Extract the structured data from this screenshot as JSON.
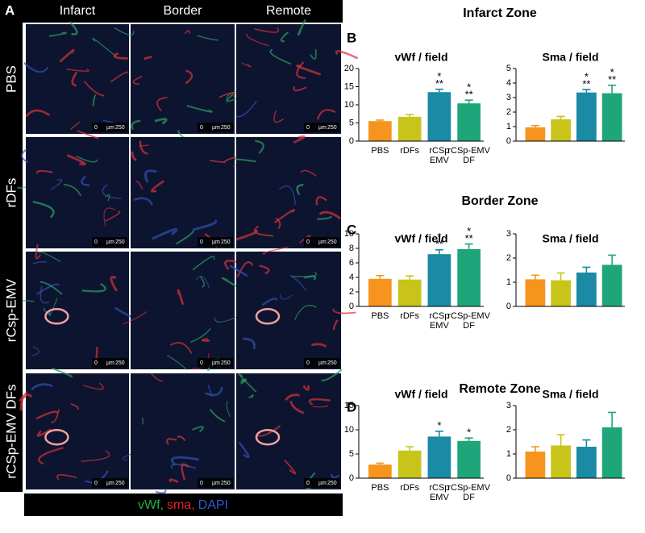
{
  "panel_a": {
    "letter": "A",
    "columns": [
      "Infarct",
      "Border",
      "Remote"
    ],
    "rows": [
      "PBS",
      "rDFs",
      "rCsp-EMV",
      "rCSp-EMV DFs"
    ],
    "scale_bar": {
      "start": "0",
      "unit": "µm",
      "end": "250"
    },
    "legend": [
      {
        "name": "vWf,",
        "color": "#22b04a"
      },
      {
        "name": "sma,",
        "color": "#e8202a"
      },
      {
        "name": "DAPI",
        "color": "#2a5cd8"
      }
    ]
  },
  "zones": [
    {
      "letter": "B",
      "title": "Infarct Zone"
    },
    {
      "letter": "C",
      "title": "Border Zone"
    },
    {
      "letter": "D",
      "title": "Remote Zone"
    }
  ],
  "chart_data": [
    {
      "type": "bar",
      "title": "vWf / field",
      "categories": [
        "PBS",
        "rDFs",
        "rCSp EMV",
        "rCSp-EMV DF"
      ],
      "values": [
        5.5,
        6.7,
        13.5,
        10.4
      ],
      "errors": [
        0.3,
        0.6,
        0.8,
        0.9
      ],
      "annotations": [
        null,
        null,
        [
          "*",
          "**"
        ],
        [
          "*",
          "**"
        ]
      ],
      "colors": [
        "#f7941d",
        "#c9c41a",
        "#1a8aa5",
        "#1fa57a"
      ],
      "ylim": [
        0,
        20
      ],
      "yticks": [
        0,
        5,
        10,
        15,
        20
      ]
    },
    {
      "type": "bar",
      "title": "Sma / field",
      "categories": [
        null,
        null,
        null,
        null
      ],
      "values": [
        0.95,
        1.5,
        3.35,
        3.3
      ],
      "errors": [
        0.12,
        0.2,
        0.2,
        0.55
      ],
      "annotations": [
        null,
        null,
        [
          "*",
          "**"
        ],
        [
          "*",
          "**"
        ]
      ],
      "colors": [
        "#f7941d",
        "#c9c41a",
        "#1a8aa5",
        "#1fa57a"
      ],
      "ylim": [
        0,
        5
      ],
      "yticks": [
        0,
        1,
        2,
        3,
        4,
        5
      ]
    },
    {
      "type": "bar",
      "title": "vWf / field",
      "categories": [
        "PBS",
        "rDFs",
        "rCSp EMV",
        "rCSp-EMV DF"
      ],
      "values": [
        3.8,
        3.7,
        7.2,
        7.9
      ],
      "errors": [
        0.45,
        0.5,
        0.6,
        0.7
      ],
      "annotations": [
        null,
        null,
        [
          "*",
          "**"
        ],
        [
          "*",
          "**"
        ]
      ],
      "colors": [
        "#f7941d",
        "#c9c41a",
        "#1a8aa5",
        "#1fa57a"
      ],
      "ylim": [
        0,
        10
      ],
      "yticks": [
        0,
        2,
        4,
        6,
        8,
        10
      ]
    },
    {
      "type": "bar",
      "title": "Sma / field",
      "categories": [
        null,
        null,
        null,
        null
      ],
      "values": [
        1.12,
        1.08,
        1.4,
        1.72
      ],
      "errors": [
        0.17,
        0.3,
        0.22,
        0.4
      ],
      "annotations": [
        null,
        null,
        null,
        null
      ],
      "colors": [
        "#f7941d",
        "#c9c41a",
        "#1a8aa5",
        "#1fa57a"
      ],
      "ylim": [
        0,
        3
      ],
      "yticks": [
        0,
        1,
        2,
        3
      ]
    },
    {
      "type": "bar",
      "title": "vWf / field",
      "categories": [
        "PBS",
        "rDFs",
        "rCSp EMV",
        "rCSp-EMV DF"
      ],
      "values": [
        2.8,
        5.7,
        8.6,
        7.7
      ],
      "errors": [
        0.3,
        0.8,
        1.1,
        0.6
      ],
      "annotations": [
        null,
        null,
        [
          "*"
        ],
        [
          "*"
        ]
      ],
      "colors": [
        "#f7941d",
        "#c9c41a",
        "#1a8aa5",
        "#1fa57a"
      ],
      "ylim": [
        0,
        15
      ],
      "yticks": [
        0,
        5,
        10,
        15
      ]
    },
    {
      "type": "bar",
      "title": "Sma / field",
      "categories": [
        null,
        null,
        null,
        null
      ],
      "values": [
        1.1,
        1.35,
        1.3,
        2.1
      ],
      "errors": [
        0.2,
        0.45,
        0.28,
        0.62
      ],
      "annotations": [
        null,
        null,
        null,
        null
      ],
      "colors": [
        "#f7941d",
        "#c9c41a",
        "#1a8aa5",
        "#1fa57a"
      ],
      "ylim": [
        0,
        3
      ],
      "yticks": [
        0,
        1,
        2,
        3
      ]
    }
  ]
}
